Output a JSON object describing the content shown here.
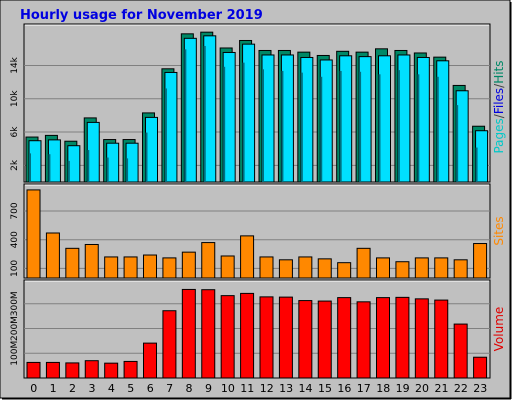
{
  "title": "Hourly usage for November 2019",
  "colors": {
    "background": "#c0c0c0",
    "title": "#0000e0",
    "pages_top": "#008866",
    "pages_side": "#004433",
    "files": "#00e0ff",
    "files_side": "#007080",
    "hits": "#008866",
    "sites": "#ff8800",
    "volume": "#ff0000",
    "grid": "#808080",
    "axis_text": "#000000",
    "panel_border": "#000000"
  },
  "chart_data": [
    {
      "type": "bar",
      "name": "pages-files-hits",
      "categories": [
        "0",
        "1",
        "2",
        "3",
        "4",
        "5",
        "6",
        "7",
        "8",
        "9",
        "10",
        "11",
        "12",
        "13",
        "14",
        "15",
        "16",
        "17",
        "18",
        "19",
        "20",
        "21",
        "22",
        "23"
      ],
      "ylabel_parts": [
        {
          "text": "Pages",
          "color": "#00c8c8"
        },
        {
          "text": "/",
          "color": "#404040"
        },
        {
          "text": "Files",
          "color": "#0000e0"
        },
        {
          "text": "/",
          "color": "#404040"
        },
        {
          "text": "Hits",
          "color": "#008866"
        }
      ],
      "ytick_labels": [
        "2k",
        "6k",
        "10k",
        "14k"
      ],
      "ytick_values": [
        2000,
        6000,
        10000,
        14000
      ],
      "ylim": [
        0,
        18500
      ],
      "series": [
        {
          "name": "Hits",
          "values": [
            5400,
            5600,
            4900,
            7700,
            5100,
            5100,
            8300,
            13600,
            17800,
            18000,
            16100,
            17000,
            15800,
            15800,
            15600,
            15200,
            15700,
            15600,
            16000,
            15800,
            15500,
            15000,
            11600,
            6700
          ]
        },
        {
          "name": "Files",
          "values": [
            5200,
            5300,
            4600,
            7400,
            4900,
            4900,
            8000,
            13400,
            17500,
            17800,
            15800,
            16800,
            15500,
            15500,
            15200,
            14900,
            15400,
            15300,
            15400,
            15500,
            15200,
            14800,
            11200,
            6400
          ]
        },
        {
          "name": "Pages",
          "values": [
            3800,
            3700,
            2900,
            4200,
            3300,
            3200,
            6300,
            11600,
            16300,
            16700,
            14200,
            14700,
            13900,
            13700,
            13500,
            13000,
            13700,
            13600,
            13300,
            13800,
            13300,
            13000,
            9600,
            4500
          ]
        }
      ]
    },
    {
      "type": "bar",
      "name": "sites",
      "categories": [
        "0",
        "1",
        "2",
        "3",
        "4",
        "5",
        "6",
        "7",
        "8",
        "9",
        "10",
        "11",
        "12",
        "13",
        "14",
        "15",
        "16",
        "17",
        "18",
        "19",
        "20",
        "21",
        "22",
        "23"
      ],
      "ylabel": "Sites",
      "ytick_labels": [
        "100",
        "400",
        "700"
      ],
      "ytick_values": [
        100,
        400,
        700
      ],
      "ylim": [
        0,
        940
      ],
      "series": [
        {
          "name": "Sites",
          "values": [
            920,
            470,
            310,
            350,
            220,
            220,
            240,
            210,
            270,
            370,
            230,
            440,
            220,
            190,
            220,
            200,
            160,
            310,
            210,
            170,
            210,
            210,
            190,
            360
          ]
        }
      ]
    },
    {
      "type": "bar",
      "name": "volume",
      "categories": [
        "0",
        "1",
        "2",
        "3",
        "4",
        "5",
        "6",
        "7",
        "8",
        "9",
        "10",
        "11",
        "12",
        "13",
        "14",
        "15",
        "16",
        "17",
        "18",
        "19",
        "20",
        "21",
        "22",
        "23"
      ],
      "ylabel": "Volume",
      "ytick_labels": [
        "100M",
        "200M",
        "300M"
      ],
      "ytick_values": [
        100,
        200,
        300
      ],
      "ylim": [
        0,
        380
      ],
      "series": [
        {
          "name": "Volume",
          "values": [
            63,
            63,
            61,
            70,
            60,
            67,
            141,
            272,
            358,
            357,
            333,
            342,
            328,
            327,
            313,
            311,
            325,
            308,
            325,
            326,
            320,
            315,
            218,
            84
          ]
        }
      ]
    }
  ]
}
